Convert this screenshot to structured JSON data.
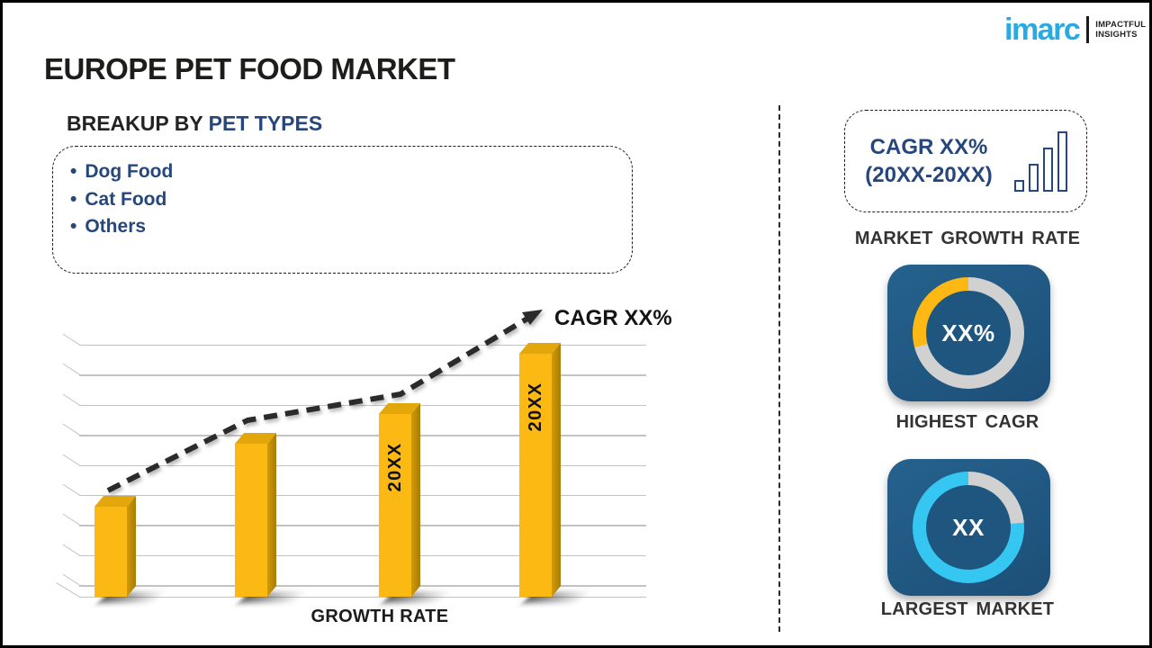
{
  "header": {
    "title": "EUROPE PET FOOD MARKET",
    "brand": {
      "name": "imarc",
      "tagline_line1": "IMPACTFUL",
      "tagline_line2": "INSIGHTS",
      "brand_color": "#29abe2"
    }
  },
  "breakup": {
    "heading_prefix": "BREAKUP BY",
    "heading_highlight": "PET TYPES",
    "items": [
      "Dog Food",
      "Cat Food",
      "Others"
    ]
  },
  "chart_data": [
    {
      "id": "growth-rate-bars",
      "type": "bar",
      "title": "",
      "xlabel": "GROWTH RATE",
      "ylabel": "",
      "categories": [
        "",
        "",
        "20XX",
        "20XX"
      ],
      "values": [
        37,
        63,
        75,
        100
      ],
      "value_scale": "relative bar heights in % of tallest bar; no numeric axis shown",
      "bar_color": "#fcb813",
      "gridline_count": 9,
      "grid": "horizontal lines with 3D perspective ticks",
      "trend_label": "CAGR XX%",
      "trend_style": "black dashed rising arrow across bar tops"
    },
    {
      "id": "highest-cagr-donut",
      "type": "donut",
      "center_label": "XX%",
      "caption": "HIGHEST CAGR",
      "segments": [
        {
          "name": "remainder",
          "color": "#d1d1d1",
          "from_deg": 0,
          "to_deg": 255
        },
        {
          "name": "highlight",
          "color": "#fdb813",
          "from_deg": 255,
          "to_deg": 360
        }
      ]
    },
    {
      "id": "largest-market-donut",
      "type": "donut",
      "center_label": "XX",
      "caption": "LARGEST MARKET",
      "segments": [
        {
          "name": "remainder",
          "color": "#d1d1d1",
          "from_deg": 0,
          "to_deg": 85
        },
        {
          "name": "highlight",
          "color": "#35c7f2",
          "from_deg": 85,
          "to_deg": 360
        }
      ]
    }
  ],
  "sidebar": {
    "growth_box": {
      "line1": "CAGR XX%",
      "line2": "(20XX-20XX)",
      "caption": "MARKET GROWTH RATE"
    }
  },
  "colors": {
    "navy_text": "#26477b",
    "tile_blue": "#1e567f",
    "yellow": "#fdb813",
    "cyan": "#35c7f2",
    "ring_gray": "#d1d1d1",
    "text_dark": "#1d1d1b"
  }
}
